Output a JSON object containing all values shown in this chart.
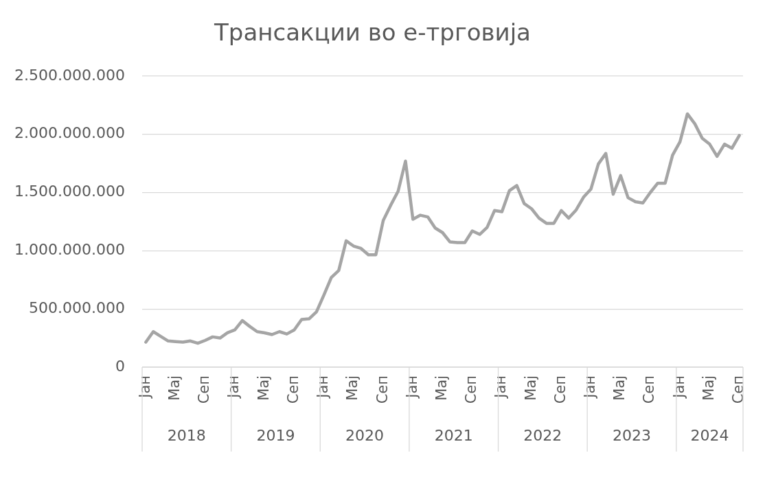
{
  "chart_data": {
    "type": "line",
    "title": "Трансакции во е-трговија",
    "categories": [
      "Јан",
      null,
      null,
      null,
      "Мај",
      null,
      null,
      null,
      "Сеп",
      null,
      null,
      null,
      "Јан",
      null,
      null,
      null,
      "Мај",
      null,
      null,
      null,
      "Сеп",
      null,
      null,
      null,
      "Јан",
      null,
      null,
      null,
      "Мај",
      null,
      null,
      null,
      "Сеп",
      null,
      null,
      null,
      "Јан",
      null,
      null,
      null,
      "Мај",
      null,
      null,
      null,
      "Сеп",
      null,
      null,
      null,
      "Јан",
      null,
      null,
      null,
      "Мај",
      null,
      null,
      null,
      "Сеп",
      null,
      null,
      null,
      "Јан",
      null,
      null,
      null,
      "Мај",
      null,
      null,
      null,
      "Сеп",
      null,
      null,
      null,
      "Јан",
      null,
      null,
      null,
      "Мај",
      null,
      null,
      null,
      "Сеп"
    ],
    "values": [
      215000000,
      305000000,
      265000000,
      225000000,
      220000000,
      215000000,
      225000000,
      205000000,
      230000000,
      260000000,
      250000000,
      295000000,
      320000000,
      400000000,
      350000000,
      305000000,
      295000000,
      280000000,
      305000000,
      285000000,
      320000000,
      410000000,
      415000000,
      475000000,
      620000000,
      770000000,
      830000000,
      1085000000,
      1040000000,
      1020000000,
      965000000,
      965000000,
      1260000000,
      1390000000,
      1510000000,
      1770000000,
      1270000000,
      1305000000,
      1290000000,
      1195000000,
      1155000000,
      1075000000,
      1070000000,
      1070000000,
      1170000000,
      1140000000,
      1200000000,
      1345000000,
      1335000000,
      1515000000,
      1560000000,
      1405000000,
      1360000000,
      1280000000,
      1235000000,
      1235000000,
      1345000000,
      1280000000,
      1350000000,
      1460000000,
      1530000000,
      1745000000,
      1835000000,
      1485000000,
      1645000000,
      1455000000,
      1420000000,
      1410000000,
      1500000000,
      1580000000,
      1580000000,
      1820000000,
      1935000000,
      2175000000,
      2090000000,
      1965000000,
      1915000000,
      1810000000,
      1915000000,
      1880000000,
      1990000000
    ],
    "color": "#a5a5a5",
    "ylim": [
      0,
      2500000000
    ],
    "yticks": [
      0,
      {
        "value": 500000000,
        "label": "500.000.000"
      },
      {
        "value": 1000000000,
        "label": "1.000.000.000"
      },
      {
        "value": 1500000000,
        "label": "1.500.000.000"
      },
      {
        "value": 2000000000,
        "label": "2.000.000.000"
      },
      {
        "value": 2500000000,
        "label": "2.500.000.000"
      }
    ],
    "grid": "y",
    "annotations": [
      "2018",
      "2019",
      "2020",
      "2021",
      "2022",
      "2023",
      "2024"
    ]
  }
}
